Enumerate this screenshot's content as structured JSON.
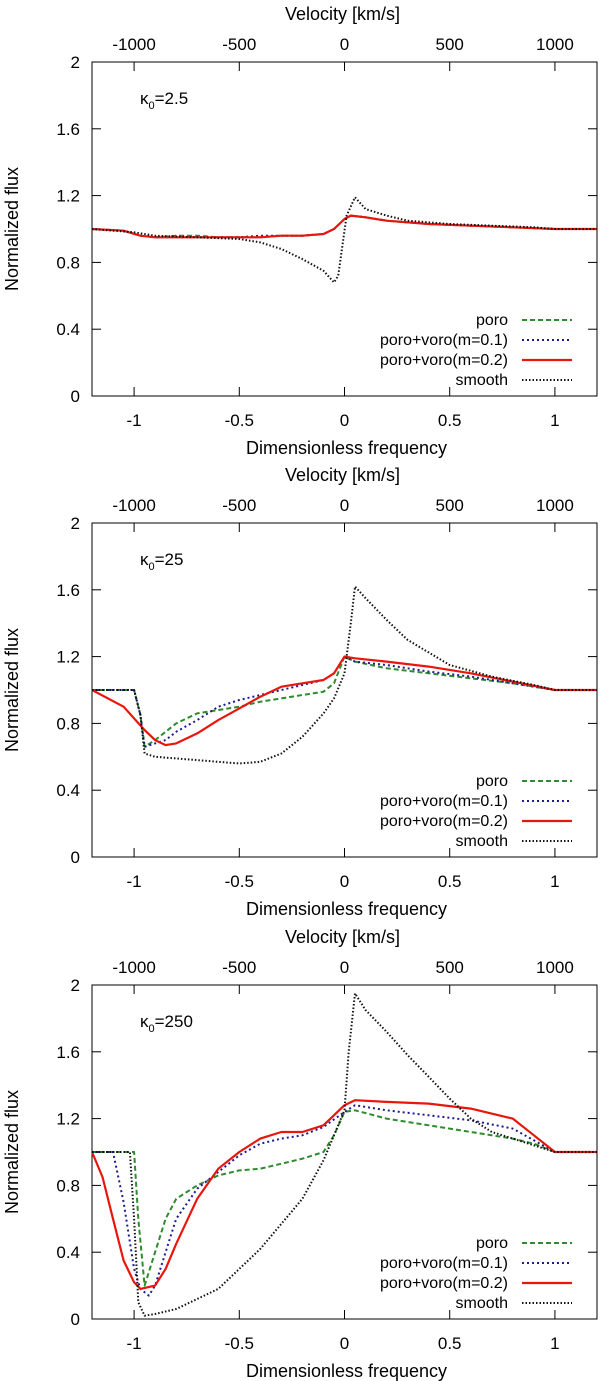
{
  "chart_data": [
    {
      "type": "line",
      "annotation": "κ0=2.5",
      "kappa_symbol": "κ",
      "kappa_sub": "0",
      "kappa_value": "=2.5",
      "xlabel": "Dimensionless frequency",
      "x2label": "Velocity [km/s]",
      "ylabel": "Normalized flux",
      "xlim": [
        -1.2,
        1.2
      ],
      "ylim": [
        0,
        2
      ],
      "xticks": [
        -1,
        -0.5,
        0,
        0.5,
        1
      ],
      "xtick_labels": [
        "-1",
        "-0.5",
        "0",
        "0.5",
        "1"
      ],
      "x2ticks": [
        -1000,
        -500,
        0,
        500,
        1000
      ],
      "x2tick_labels": [
        "-1000",
        "-500",
        "0",
        "500",
        "1000"
      ],
      "yticks": [
        0,
        0.4,
        0.8,
        1.2,
        1.6,
        2
      ],
      "ytick_labels": [
        "0",
        "0.4",
        "0.8",
        "1.2",
        "1.6",
        "2"
      ],
      "legend_position": "bottom-right",
      "series": [
        {
          "name": "poro",
          "color": "#2e8b2e",
          "dash": "5,3",
          "x": [
            -1.2,
            -1.05,
            -0.97,
            -0.9,
            -0.8,
            -0.7,
            -0.6,
            -0.5,
            -0.4,
            -0.3,
            -0.2,
            -0.1,
            -0.05,
            0,
            0.03,
            0.1,
            0.2,
            0.4,
            0.6,
            0.8,
            1.0,
            1.2
          ],
          "y": [
            1.0,
            0.99,
            0.96,
            0.95,
            0.96,
            0.96,
            0.95,
            0.95,
            0.95,
            0.96,
            0.96,
            0.97,
            1.0,
            1.06,
            1.08,
            1.07,
            1.05,
            1.03,
            1.02,
            1.01,
            1.0,
            1.0
          ]
        },
        {
          "name": "poro+voro(m=0.1)",
          "color": "#1c1c8c",
          "dash": "2,3",
          "x": [
            -1.2,
            -1.05,
            -0.97,
            -0.9,
            -0.8,
            -0.7,
            -0.6,
            -0.5,
            -0.4,
            -0.3,
            -0.2,
            -0.1,
            -0.05,
            0,
            0.03,
            0.1,
            0.2,
            0.4,
            0.6,
            0.8,
            1.0,
            1.2
          ],
          "y": [
            1.0,
            0.99,
            0.96,
            0.95,
            0.95,
            0.95,
            0.95,
            0.95,
            0.96,
            0.96,
            0.96,
            0.97,
            1.0,
            1.06,
            1.08,
            1.07,
            1.05,
            1.03,
            1.02,
            1.01,
            1.0,
            1.0
          ]
        },
        {
          "name": "poro+voro(m=0.2)",
          "color": "#e8160c",
          "dash": "",
          "x": [
            -1.2,
            -1.05,
            -0.97,
            -0.9,
            -0.8,
            -0.7,
            -0.6,
            -0.5,
            -0.4,
            -0.3,
            -0.2,
            -0.1,
            -0.05,
            0,
            0.03,
            0.1,
            0.2,
            0.4,
            0.6,
            0.8,
            1.0,
            1.2
          ],
          "y": [
            1.0,
            0.99,
            0.96,
            0.95,
            0.95,
            0.95,
            0.95,
            0.95,
            0.95,
            0.96,
            0.96,
            0.97,
            1.0,
            1.06,
            1.08,
            1.07,
            1.05,
            1.03,
            1.02,
            1.01,
            1.0,
            1.0
          ]
        },
        {
          "name": "smooth",
          "color": "#111111",
          "dash": "1.5,2",
          "x": [
            -1.2,
            -1.0,
            -0.9,
            -0.7,
            -0.5,
            -0.4,
            -0.3,
            -0.2,
            -0.1,
            -0.05,
            -0.03,
            -0.01,
            0.01,
            0.05,
            0.1,
            0.2,
            0.3,
            0.5,
            0.7,
            0.9,
            1.0,
            1.2
          ],
          "y": [
            1.0,
            0.98,
            0.96,
            0.95,
            0.94,
            0.92,
            0.88,
            0.82,
            0.75,
            0.68,
            0.72,
            0.9,
            1.08,
            1.19,
            1.12,
            1.08,
            1.05,
            1.03,
            1.02,
            1.01,
            1.0,
            1.0
          ]
        }
      ]
    },
    {
      "type": "line",
      "annotation": "κ0=25",
      "kappa_symbol": "κ",
      "kappa_sub": "0",
      "kappa_value": "=25",
      "xlabel": "Dimensionless frequency",
      "x2label": "Velocity [km/s]",
      "ylabel": "Normalized flux",
      "xlim": [
        -1.2,
        1.2
      ],
      "ylim": [
        0,
        2
      ],
      "xticks": [
        -1,
        -0.5,
        0,
        0.5,
        1
      ],
      "xtick_labels": [
        "-1",
        "-0.5",
        "0",
        "0.5",
        "1"
      ],
      "x2ticks": [
        -1000,
        -500,
        0,
        500,
        1000
      ],
      "x2tick_labels": [
        "-1000",
        "-500",
        "0",
        "500",
        "1000"
      ],
      "yticks": [
        0,
        0.4,
        0.8,
        1.2,
        1.6,
        2
      ],
      "ytick_labels": [
        "0",
        "0.4",
        "0.8",
        "1.2",
        "1.6",
        "2"
      ],
      "legend_position": "bottom-right",
      "series": [
        {
          "name": "poro",
          "color": "#2e8b2e",
          "dash": "5,3",
          "x": [
            -1.2,
            -1.0,
            -0.97,
            -0.95,
            -0.9,
            -0.85,
            -0.8,
            -0.7,
            -0.6,
            -0.5,
            -0.4,
            -0.3,
            -0.2,
            -0.1,
            -0.05,
            0,
            0.05,
            0.2,
            0.4,
            0.6,
            0.8,
            1.0,
            1.2
          ],
          "y": [
            1.0,
            1.0,
            0.85,
            0.66,
            0.7,
            0.75,
            0.8,
            0.86,
            0.88,
            0.9,
            0.93,
            0.95,
            0.97,
            0.99,
            1.04,
            1.2,
            1.17,
            1.13,
            1.1,
            1.07,
            1.04,
            1.0,
            1.0
          ]
        },
        {
          "name": "poro+voro(m=0.1)",
          "color": "#1c1c8c",
          "dash": "2,3",
          "x": [
            -1.2,
            -1.0,
            -0.97,
            -0.95,
            -0.9,
            -0.85,
            -0.8,
            -0.7,
            -0.6,
            -0.5,
            -0.4,
            -0.3,
            -0.2,
            -0.1,
            -0.05,
            0,
            0.05,
            0.2,
            0.4,
            0.6,
            0.8,
            1.0,
            1.2
          ],
          "y": [
            1.0,
            1.0,
            0.85,
            0.66,
            0.68,
            0.7,
            0.75,
            0.82,
            0.9,
            0.94,
            0.97,
            1.0,
            1.03,
            1.06,
            1.1,
            1.2,
            1.17,
            1.15,
            1.11,
            1.08,
            1.04,
            1.0,
            1.0
          ]
        },
        {
          "name": "poro+voro(m=0.2)",
          "color": "#e8160c",
          "dash": "",
          "x": [
            -1.2,
            -1.05,
            -0.95,
            -0.9,
            -0.85,
            -0.8,
            -0.7,
            -0.6,
            -0.5,
            -0.4,
            -0.3,
            -0.2,
            -0.1,
            -0.05,
            0,
            0.05,
            0.2,
            0.4,
            0.6,
            0.8,
            1.0,
            1.2
          ],
          "y": [
            1.0,
            0.9,
            0.76,
            0.7,
            0.67,
            0.68,
            0.74,
            0.82,
            0.89,
            0.96,
            1.02,
            1.04,
            1.06,
            1.1,
            1.2,
            1.19,
            1.17,
            1.14,
            1.1,
            1.05,
            1.0,
            1.0
          ]
        },
        {
          "name": "smooth",
          "color": "#111111",
          "dash": "1.5,2",
          "x": [
            -1.2,
            -1.0,
            -0.97,
            -0.95,
            -0.9,
            -0.7,
            -0.5,
            -0.4,
            -0.3,
            -0.2,
            -0.1,
            -0.05,
            0,
            0.03,
            0.05,
            0.1,
            0.2,
            0.3,
            0.5,
            0.7,
            0.9,
            1.0,
            1.2
          ],
          "y": [
            1.0,
            1.0,
            0.85,
            0.62,
            0.6,
            0.58,
            0.56,
            0.57,
            0.62,
            0.72,
            0.86,
            0.95,
            1.1,
            1.4,
            1.62,
            1.55,
            1.42,
            1.3,
            1.15,
            1.08,
            1.03,
            1.0,
            1.0
          ]
        }
      ]
    },
    {
      "type": "line",
      "annotation": "κ0=250",
      "kappa_symbol": "κ",
      "kappa_sub": "0",
      "kappa_value": "=250",
      "xlabel": "Dimensionless frequency",
      "x2label": "Velocity [km/s]",
      "ylabel": "Normalized flux",
      "xlim": [
        -1.2,
        1.2
      ],
      "ylim": [
        0,
        2
      ],
      "xticks": [
        -1,
        -0.5,
        0,
        0.5,
        1
      ],
      "xtick_labels": [
        "-1",
        "-0.5",
        "0",
        "0.5",
        "1"
      ],
      "x2ticks": [
        -1000,
        -500,
        0,
        500,
        1000
      ],
      "x2tick_labels": [
        "-1000",
        "-500",
        "0",
        "500",
        "1000"
      ],
      "yticks": [
        0,
        0.4,
        0.8,
        1.2,
        1.6,
        2
      ],
      "ytick_labels": [
        "0",
        "0.4",
        "0.8",
        "1.2",
        "1.6",
        "2"
      ],
      "legend_position": "bottom-right",
      "series": [
        {
          "name": "poro",
          "color": "#2e8b2e",
          "dash": "5,3",
          "x": [
            -1.2,
            -1.0,
            -0.98,
            -0.95,
            -0.9,
            -0.85,
            -0.8,
            -0.7,
            -0.6,
            -0.5,
            -0.4,
            -0.3,
            -0.2,
            -0.1,
            -0.05,
            0,
            0.05,
            0.2,
            0.4,
            0.6,
            0.8,
            0.9,
            1.0,
            1.2
          ],
          "y": [
            1.0,
            1.0,
            0.6,
            0.2,
            0.4,
            0.6,
            0.72,
            0.8,
            0.86,
            0.89,
            0.9,
            0.93,
            0.96,
            1.0,
            1.1,
            1.24,
            1.25,
            1.2,
            1.16,
            1.12,
            1.08,
            1.05,
            1.0,
            1.0
          ]
        },
        {
          "name": "poro+voro(m=0.1)",
          "color": "#1c1c8c",
          "dash": "2,3",
          "x": [
            -1.2,
            -1.1,
            -1.05,
            -1.0,
            -0.97,
            -0.93,
            -0.9,
            -0.85,
            -0.8,
            -0.7,
            -0.6,
            -0.5,
            -0.4,
            -0.3,
            -0.2,
            -0.1,
            0,
            0.05,
            0.2,
            0.4,
            0.6,
            0.8,
            1.0,
            1.2
          ],
          "y": [
            1.0,
            1.0,
            0.7,
            0.3,
            0.18,
            0.14,
            0.2,
            0.4,
            0.6,
            0.78,
            0.88,
            0.98,
            1.05,
            1.08,
            1.1,
            1.15,
            1.24,
            1.28,
            1.25,
            1.22,
            1.19,
            1.14,
            1.0,
            1.0
          ]
        },
        {
          "name": "poro+voro(m=0.2)",
          "color": "#e8160c",
          "dash": "",
          "x": [
            -1.2,
            -1.15,
            -1.1,
            -1.05,
            -1.0,
            -0.97,
            -0.9,
            -0.85,
            -0.8,
            -0.7,
            -0.6,
            -0.5,
            -0.4,
            -0.3,
            -0.2,
            -0.1,
            0,
            0.05,
            0.2,
            0.4,
            0.6,
            0.8,
            0.9,
            1.0,
            1.2
          ],
          "y": [
            1.0,
            0.85,
            0.6,
            0.35,
            0.22,
            0.18,
            0.2,
            0.3,
            0.45,
            0.72,
            0.9,
            1.0,
            1.08,
            1.12,
            1.12,
            1.16,
            1.28,
            1.31,
            1.3,
            1.29,
            1.26,
            1.2,
            1.1,
            1.0,
            1.0
          ]
        },
        {
          "name": "smooth",
          "color": "#111111",
          "dash": "1.5,2",
          "x": [
            -1.2,
            -1.02,
            -1.0,
            -0.98,
            -0.95,
            -0.9,
            -0.8,
            -0.6,
            -0.4,
            -0.2,
            -0.1,
            -0.05,
            0,
            0.02,
            0.05,
            0.1,
            0.2,
            0.3,
            0.4,
            0.5,
            0.6,
            0.7,
            0.8,
            0.9,
            1.0,
            1.2
          ],
          "y": [
            1.0,
            1.0,
            0.6,
            0.1,
            0.02,
            0.03,
            0.06,
            0.18,
            0.42,
            0.72,
            0.95,
            1.1,
            1.25,
            1.6,
            1.95,
            1.85,
            1.72,
            1.58,
            1.45,
            1.32,
            1.2,
            1.12,
            1.08,
            1.04,
            1.0,
            1.0
          ]
        }
      ]
    }
  ]
}
